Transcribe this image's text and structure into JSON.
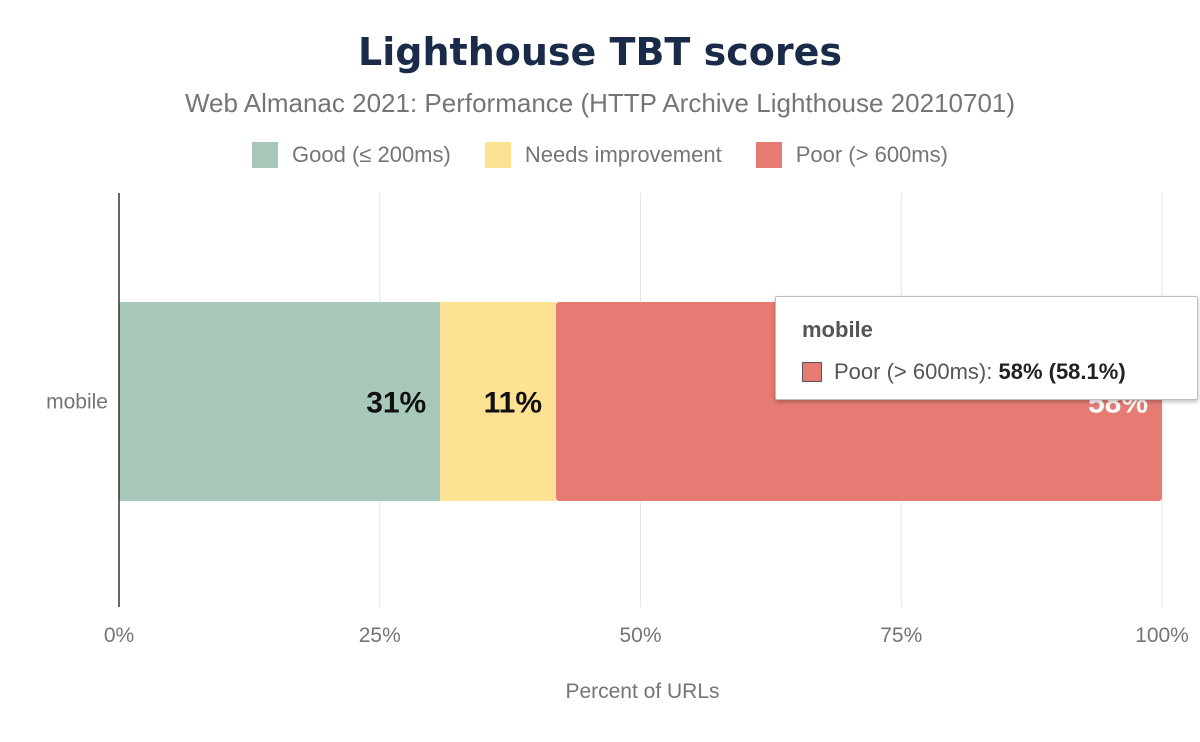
{
  "chart_data": {
    "type": "bar",
    "orientation": "horizontal",
    "stacked": true,
    "title": "Lighthouse TBT scores",
    "subtitle": "Web Almanac 2021: Performance (HTTP Archive Lighthouse 20210701)",
    "xlabel": "Percent of URLs",
    "ylabel": "",
    "xlim": [
      0,
      100
    ],
    "x_ticks": [
      "0%",
      "25%",
      "50%",
      "75%",
      "100%"
    ],
    "categories": [
      "mobile"
    ],
    "series": [
      {
        "name": "Good (≤ 200ms)",
        "values": [
          30.8
        ],
        "label": "31%",
        "color": "#a8c9ba"
      },
      {
        "name": "Needs improvement",
        "values": [
          11.1
        ],
        "label": "11%",
        "color": "#fde294"
      },
      {
        "name": "Poor (> 600ms)",
        "values": [
          58.1
        ],
        "label": "58%",
        "color": "#e67b73"
      }
    ],
    "legend_position": "top",
    "grid": true
  },
  "tooltip": {
    "title": "mobile",
    "series_label": "Poor (> 600ms):",
    "value": "58% (58.1%)",
    "color": "#e67b73"
  }
}
